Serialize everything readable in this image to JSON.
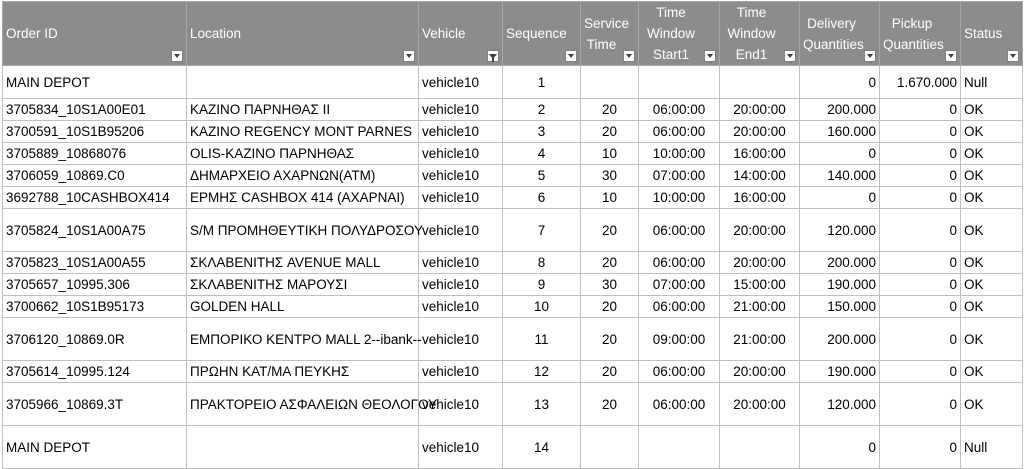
{
  "columns": [
    {
      "key": "order_id",
      "label_lines": [
        "Order ID"
      ],
      "filter": false
    },
    {
      "key": "location",
      "label_lines": [
        "Location"
      ],
      "filter": false
    },
    {
      "key": "vehicle",
      "label_lines": [
        "Vehicle"
      ],
      "filter": true
    },
    {
      "key": "sequence",
      "label_lines": [
        "Sequence"
      ],
      "filter": false
    },
    {
      "key": "service_time",
      "label_lines": [
        "Service",
        "Time"
      ],
      "filter": false
    },
    {
      "key": "tw_start1",
      "label_lines": [
        "Time",
        "Window",
        "Start1"
      ],
      "filter": false
    },
    {
      "key": "tw_end1",
      "label_lines": [
        "Time",
        "Window",
        "End1"
      ],
      "filter": false
    },
    {
      "key": "delivery_qty",
      "label_lines": [
        "Delivery",
        "Quantities"
      ],
      "filter": false
    },
    {
      "key": "pickup_qty",
      "label_lines": [
        "Pickup",
        "Quantities"
      ],
      "filter": false
    },
    {
      "key": "status",
      "label_lines": [
        "Status"
      ],
      "filter": false
    }
  ],
  "rows": [
    {
      "order_id": "MAIN DEPOT",
      "location": "",
      "vehicle": "vehicle10",
      "sequence": "1",
      "service_time": "",
      "tw_start1": "",
      "tw_end1": "",
      "delivery_qty": "0",
      "pickup_qty": "1.670.000",
      "status": "Null"
    },
    {
      "order_id": "3705834_10S1A00E01",
      "location": "ΚΑΖΙΝΟ ΠΑΡΝΗΘΑΣ II",
      "vehicle": "vehicle10",
      "sequence": "2",
      "service_time": "20",
      "tw_start1": "06:00:00",
      "tw_end1": "20:00:00",
      "delivery_qty": "200.000",
      "pickup_qty": "0",
      "status": "OK"
    },
    {
      "order_id": "3700591_10S1B95206",
      "location": "ΚΑΖΙΝΟ REGENCY MONT PARNES",
      "vehicle": "vehicle10",
      "sequence": "3",
      "service_time": "20",
      "tw_start1": "06:00:00",
      "tw_end1": "20:00:00",
      "delivery_qty": "160.000",
      "pickup_qty": "0",
      "status": "OK"
    },
    {
      "order_id": "3705889_10868076",
      "location": "OLIS-ΚΑΖΙΝΟ ΠΑΡΝΗΘΑΣ",
      "vehicle": "vehicle10",
      "sequence": "4",
      "service_time": "10",
      "tw_start1": "10:00:00",
      "tw_end1": "16:00:00",
      "delivery_qty": "0",
      "pickup_qty": "0",
      "status": "OK"
    },
    {
      "order_id": "3706059_10869.C0",
      "location": "ΔΗΜΑΡΧΕΙΟ ΑΧΑΡΝΩΝ(ATM)",
      "vehicle": "vehicle10",
      "sequence": "5",
      "service_time": "30",
      "tw_start1": "07:00:00",
      "tw_end1": "14:00:00",
      "delivery_qty": "140.000",
      "pickup_qty": "0",
      "status": "OK"
    },
    {
      "order_id": "3692788_10CASHBOX414",
      "location": "ΕΡΜΗΣ CASHBOX 414 (ΑΧΑΡΝΑΙ)",
      "vehicle": "vehicle10",
      "sequence": "6",
      "service_time": "10",
      "tw_start1": "10:00:00",
      "tw_end1": "16:00:00",
      "delivery_qty": "0",
      "pickup_qty": "0",
      "status": "OK"
    },
    {
      "order_id": "3705824_10S1A00A75",
      "location": "S/M ΠΡΟΜΗΘΕΥΤΙΚΗ ΠΟΛΥΔΡΟΣΟΥ",
      "vehicle": "vehicle10",
      "sequence": "7",
      "service_time": "20",
      "tw_start1": "06:00:00",
      "tw_end1": "20:00:00",
      "delivery_qty": "120.000",
      "pickup_qty": "0",
      "status": "OK",
      "tall": true
    },
    {
      "order_id": "3705823_10S1A00A55",
      "location": "ΣΚΛΑΒΕΝΙΤΗΣ AVENUE MALL",
      "vehicle": "vehicle10",
      "sequence": "8",
      "service_time": "20",
      "tw_start1": "06:00:00",
      "tw_end1": "20:00:00",
      "delivery_qty": "200.000",
      "pickup_qty": "0",
      "status": "OK"
    },
    {
      "order_id": "3705657_10995.306",
      "location": "ΣΚΛΑΒΕΝΙΤΗΣ ΜΑΡΟΥΣΙ",
      "vehicle": "vehicle10",
      "sequence": "9",
      "service_time": "30",
      "tw_start1": "07:00:00",
      "tw_end1": "15:00:00",
      "delivery_qty": "190.000",
      "pickup_qty": "0",
      "status": "OK"
    },
    {
      "order_id": "3700662_10S1B95173",
      "location": "GOLDEN HALL",
      "vehicle": "vehicle10",
      "sequence": "10",
      "service_time": "20",
      "tw_start1": "06:00:00",
      "tw_end1": "21:00:00",
      "delivery_qty": "150.000",
      "pickup_qty": "0",
      "status": "OK"
    },
    {
      "order_id": "3706120_10869.0R",
      "location": "ΕΜΠΟΡΙΚΟ ΚΕΝΤΡΟ MALL 2--ibank--",
      "vehicle": "vehicle10",
      "sequence": "11",
      "service_time": "20",
      "tw_start1": "09:00:00",
      "tw_end1": "21:00:00",
      "delivery_qty": "200.000",
      "pickup_qty": "0",
      "status": "OK",
      "tall": true
    },
    {
      "order_id": "3705614_10995.124",
      "location": "ΠΡΩΗΝ ΚΑΤ/ΜΑ ΠΕΥΚΗΣ",
      "vehicle": "vehicle10",
      "sequence": "12",
      "service_time": "20",
      "tw_start1": "06:00:00",
      "tw_end1": "20:00:00",
      "delivery_qty": "190.000",
      "pickup_qty": "0",
      "status": "OK"
    },
    {
      "order_id": "3705966_10869.3T",
      "location": "ΠΡΑΚΤΟΡΕΙΟ ΑΣΦΑΛΕΙΩΝ ΘΕΟΛΟΓΟΥ",
      "vehicle": "vehicle10",
      "sequence": "13",
      "service_time": "20",
      "tw_start1": "06:00:00",
      "tw_end1": "20:00:00",
      "delivery_qty": "120.000",
      "pickup_qty": "0",
      "status": "OK",
      "tall": true
    },
    {
      "order_id": "MAIN DEPOT",
      "location": "",
      "vehicle": "vehicle10",
      "sequence": "14",
      "service_time": "",
      "tw_start1": "",
      "tw_end1": "",
      "delivery_qty": "0",
      "pickup_qty": "0",
      "status": "Null",
      "tall": true
    }
  ]
}
